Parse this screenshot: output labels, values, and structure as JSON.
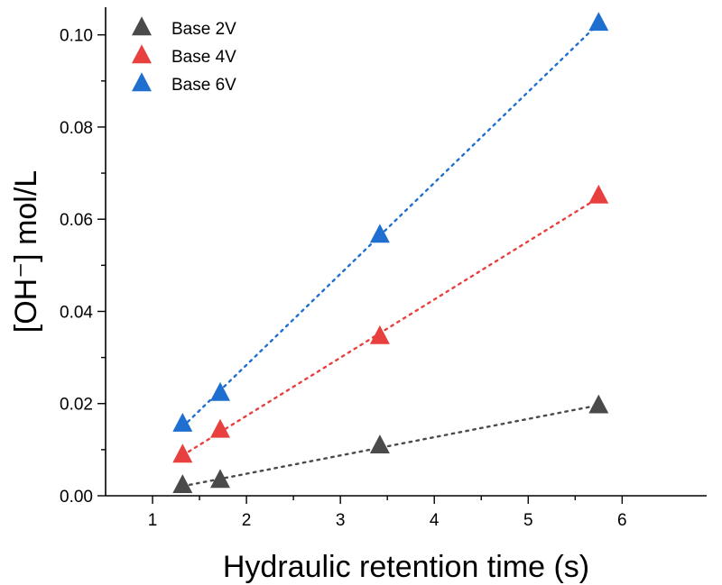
{
  "chart_data": {
    "type": "scatter",
    "xlabel": "Hydraulic retention time (s)",
    "ylabel": "[OH⁻] mol/L",
    "xlim": [
      0.5,
      6.9
    ],
    "ylim": [
      0,
      0.106
    ],
    "x_ticks": [
      1,
      2,
      3,
      4,
      5,
      6
    ],
    "y_ticks": [
      0.0,
      0.02,
      0.04,
      0.06,
      0.08,
      0.1
    ],
    "x_tick_labels": [
      "1",
      "2",
      "3",
      "4",
      "5",
      "6"
    ],
    "y_tick_labels": [
      "0.00",
      "0.02",
      "0.04",
      "0.06",
      "0.08",
      "0.10"
    ],
    "grid": false,
    "legend_position": "top-left",
    "marker": "triangle",
    "trendline": "linear dotted",
    "series": [
      {
        "name": "Base 2V",
        "color": "#4a4a4a",
        "x": [
          1.32,
          1.72,
          3.42,
          5.75
        ],
        "y": [
          0.0022,
          0.0033,
          0.0108,
          0.0195
        ]
      },
      {
        "name": "Base 4V",
        "color": "#e8403e",
        "x": [
          1.32,
          1.72,
          3.42,
          5.75
        ],
        "y": [
          0.0088,
          0.0142,
          0.0345,
          0.065
        ]
      },
      {
        "name": "Base 6V",
        "color": "#1f6fd1",
        "x": [
          1.32,
          1.72,
          3.42,
          5.75
        ],
        "y": [
          0.0155,
          0.0222,
          0.0565,
          0.1025
        ]
      }
    ]
  }
}
